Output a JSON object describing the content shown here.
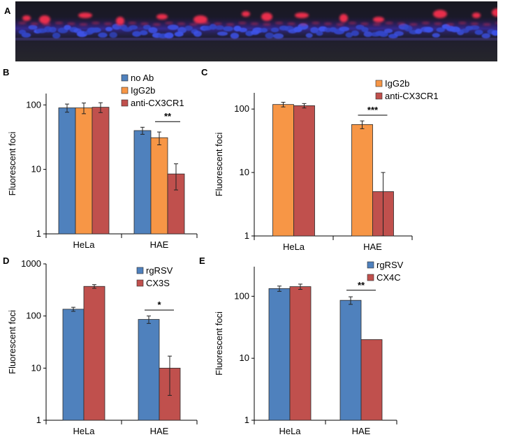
{
  "panels": {
    "a": "A",
    "b": "B",
    "c": "C",
    "d": "D",
    "e": "E"
  },
  "image_a": {
    "description_colors": {
      "membrane": "#ff2a4a",
      "nuclei": "#3a4de0",
      "background": "#14141c"
    }
  },
  "colors": {
    "blue": "#4f81bd",
    "orange": "#f79646",
    "red": "#c0504d"
  },
  "chart_data": [
    {
      "id": "B",
      "type": "bar",
      "scale": "log",
      "categories": [
        "HeLa",
        "HAE"
      ],
      "ylabel": "Fluorescent foci",
      "yticks": [
        1,
        10,
        100
      ],
      "ylim": [
        1,
        150
      ],
      "series": [
        {
          "name": "no Ab",
          "color": "blue",
          "values": [
            90,
            40
          ],
          "err": [
            13,
            5
          ]
        },
        {
          "name": "IgG2b",
          "color": "orange",
          "values": [
            90,
            31
          ],
          "err": [
            17,
            7
          ]
        },
        {
          "name": "anti-CX3CR1",
          "color": "red",
          "values": [
            92,
            8.5
          ],
          "err": [
            16,
            3.7
          ]
        }
      ],
      "significance": [
        {
          "category": 1,
          "from": 1,
          "to": 2,
          "label": "**",
          "y": 55
        }
      ]
    },
    {
      "id": "C",
      "type": "bar",
      "scale": "log",
      "categories": [
        "HeLa",
        "HAE"
      ],
      "ylabel": "Fluorescent foci",
      "yticks": [
        1,
        10,
        100
      ],
      "ylim": [
        1,
        180
      ],
      "series": [
        {
          "name": "IgG2b",
          "color": "orange",
          "values": [
            118,
            57
          ],
          "err": [
            10,
            8
          ]
        },
        {
          "name": "anti-CX3CR1",
          "color": "red",
          "values": [
            113,
            5
          ],
          "err": [
            9,
            5
          ]
        }
      ],
      "significance": [
        {
          "category": 1,
          "from": 0,
          "to": 1,
          "label": "***",
          "y": 80
        }
      ]
    },
    {
      "id": "D",
      "type": "bar",
      "scale": "log",
      "categories": [
        "HeLa",
        "HAE"
      ],
      "ylabel": "Fluorescent foci",
      "yticks": [
        1,
        10,
        100,
        1000
      ],
      "ylim": [
        1,
        1000
      ],
      "series": [
        {
          "name": "rgRSV",
          "color": "blue",
          "values": [
            135,
            86
          ],
          "err": [
            12,
            14
          ]
        },
        {
          "name": "CX3S",
          "color": "red",
          "values": [
            370,
            10
          ],
          "err": [
            30,
            7
          ]
        }
      ],
      "significance": [
        {
          "category": 1,
          "from": 0,
          "to": 1,
          "label": "*",
          "y": 130
        }
      ]
    },
    {
      "id": "E",
      "type": "bar",
      "scale": "log",
      "categories": [
        "HeLa",
        "HAE"
      ],
      "ylabel": "Fluorescent foci",
      "yticks": [
        1,
        10,
        100
      ],
      "ylim": [
        1,
        300
      ],
      "series": [
        {
          "name": "rgRSV",
          "color": "blue",
          "values": [
            133,
            86
          ],
          "err": [
            13,
            12
          ]
        },
        {
          "name": "CX4C",
          "color": "red",
          "values": [
            143,
            20
          ],
          "err": [
            14,
            0
          ]
        }
      ],
      "significance": [
        {
          "category": 1,
          "from": 0,
          "to": 1,
          "label": "**",
          "y": 125
        }
      ]
    }
  ]
}
